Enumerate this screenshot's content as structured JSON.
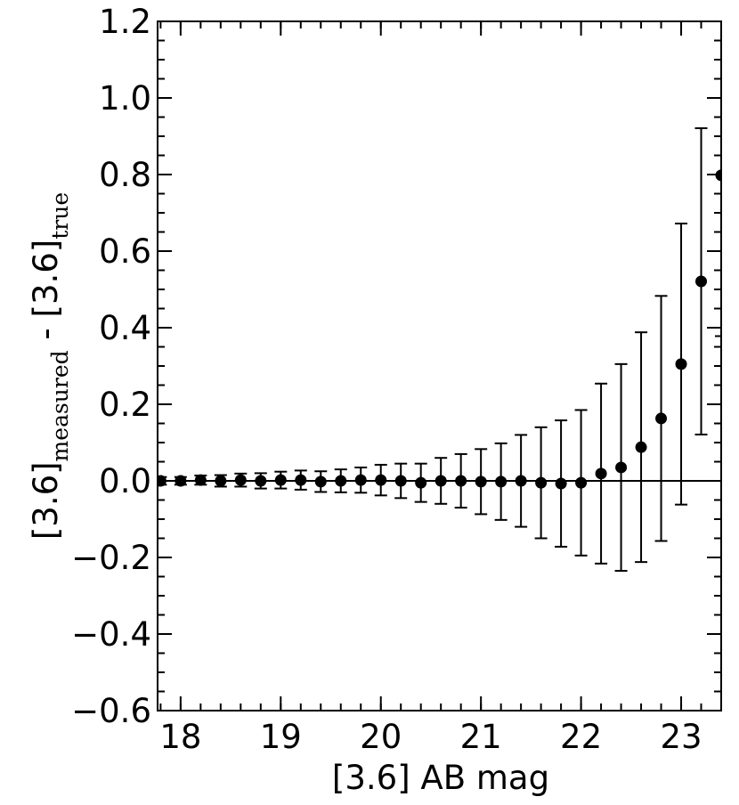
{
  "chart_data": {
    "type": "errorbar",
    "xlabel": "[3.6] AB mag",
    "ylabel": {
      "base1": "[3.6]",
      "sub1": "measured",
      "base2": " - [3.6]",
      "sub2": "true"
    },
    "x": [
      17.8,
      18.0,
      18.2,
      18.4,
      18.6,
      18.8,
      19.0,
      19.2,
      19.4,
      19.6,
      19.8,
      20.0,
      20.2,
      20.4,
      20.6,
      20.8,
      21.0,
      21.2,
      21.4,
      21.6,
      21.8,
      22.0,
      22.2,
      22.4,
      22.6,
      22.8,
      23.0,
      23.2,
      23.4
    ],
    "values": [
      0.0,
      0.0,
      0.002,
      0.0,
      0.002,
      0.0,
      0.002,
      0.002,
      -0.002,
      0.0,
      0.002,
      0.002,
      0.0,
      -0.005,
      0.0,
      0.0,
      -0.002,
      -0.002,
      0.0,
      -0.005,
      -0.007,
      -0.005,
      0.019,
      0.035,
      0.088,
      0.163,
      0.305,
      0.521,
      0.798
    ],
    "errors": [
      0.01,
      0.01,
      0.012,
      0.015,
      0.017,
      0.02,
      0.022,
      0.025,
      0.027,
      0.03,
      0.033,
      0.04,
      0.045,
      0.05,
      0.06,
      0.07,
      0.085,
      0.1,
      0.12,
      0.145,
      0.165,
      0.19,
      0.235,
      0.27,
      0.3,
      0.32,
      0.367,
      0.4,
      0.42
    ],
    "color": "#000000",
    "hline": 0,
    "xlim": [
      17.77,
      23.4
    ],
    "ylim": [
      -0.6,
      1.2
    ],
    "xticks": [
      18,
      19,
      20,
      21,
      22,
      23
    ],
    "yticks": [
      {
        "value": -0.6,
        "label": "−0.6"
      },
      {
        "value": -0.4,
        "label": "−0.4"
      },
      {
        "value": -0.2,
        "label": "−0.2"
      },
      {
        "value": 0,
        "label": "0.0"
      },
      {
        "value": 0.2,
        "label": "0.2"
      },
      {
        "value": 0.4,
        "label": "0.4"
      },
      {
        "value": 0.6,
        "label": "0.6"
      },
      {
        "value": 0.8,
        "label": "0.8"
      },
      {
        "value": 1.0,
        "label": "1.0"
      },
      {
        "value": 1.2,
        "label": "1.2"
      }
    ],
    "xminor_step": 0.2,
    "yminor_step": 0.05
  }
}
